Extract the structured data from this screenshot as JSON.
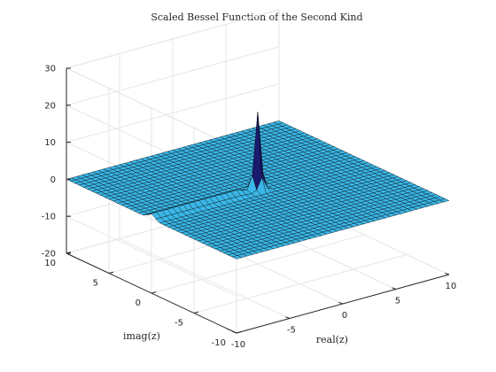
{
  "chart_data": {
    "type": "surface",
    "title": "Scaled Bessel Function of the Second Kind",
    "xlabel": "real(z)",
    "ylabel": "imag(z)",
    "zlabel": "",
    "xlim": [
      -10,
      10
    ],
    "ylim": [
      -10,
      10
    ],
    "zlim": [
      -20,
      30
    ],
    "x_ticks": [
      "-10",
      "-5",
      "0",
      "5",
      "10"
    ],
    "y_ticks": [
      "-10",
      "-5",
      "0",
      "5",
      "10"
    ],
    "z_ticks": [
      "-20",
      "-10",
      "0",
      "10",
      "20",
      "30"
    ],
    "grid": true,
    "surface": {
      "x_range": [
        -10,
        10
      ],
      "y_range": [
        -10,
        10
      ],
      "steps": 40,
      "baseline_z": 0,
      "features": [
        {
          "kind": "spike",
          "x": 0,
          "y": 0,
          "peak_z": 21
        },
        {
          "kind": "ridge",
          "along": "negative real axis",
          "x_range": [
            -10,
            0
          ],
          "y": 0,
          "height_z": 1.5
        }
      ]
    },
    "colors": {
      "face": "#3ab7e8",
      "edge": "#000000",
      "spike": "#1a1a6e"
    }
  }
}
